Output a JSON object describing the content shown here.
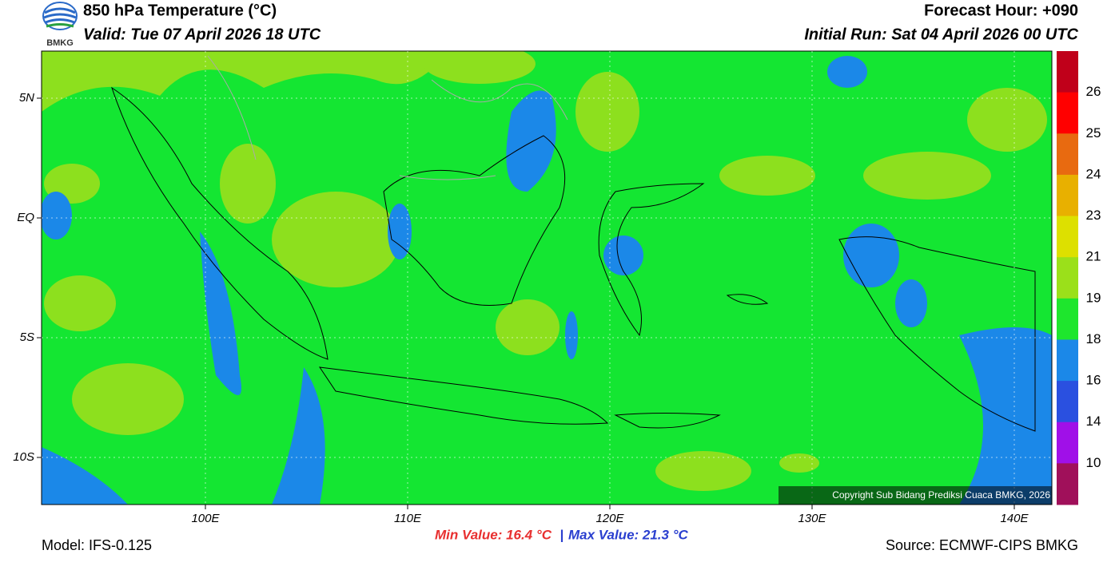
{
  "header": {
    "title": "850 hPa Temperature (°C)",
    "valid": "Valid: Tue 07 April 2026 18 UTC",
    "forecast_hour": "Forecast Hour: +090",
    "initial_run": "Initial Run: Sat 04 April 2026 00 UTC",
    "logo": "BMKG"
  },
  "map": {
    "lat_labels": [
      "5N",
      "EQ",
      "5S",
      "10S"
    ],
    "lon_labels": [
      "100E",
      "110E",
      "120E",
      "130E",
      "140E"
    ],
    "copyright": "Copyright Sub Bidang Prediksi Cuaca BMKG, 2026"
  },
  "legend": {
    "labels": [
      "26",
      "25",
      "24",
      "23",
      "21",
      "19",
      "18",
      "16",
      "14",
      "10"
    ]
  },
  "footer": {
    "min_value": "Min Value: 16.4 °C",
    "separator": "|",
    "max_value": "Max Value: 21.3 °C",
    "model": "Model: IFS-0.125",
    "source": "Source: ECMWF-CIPS BMKG"
  }
}
